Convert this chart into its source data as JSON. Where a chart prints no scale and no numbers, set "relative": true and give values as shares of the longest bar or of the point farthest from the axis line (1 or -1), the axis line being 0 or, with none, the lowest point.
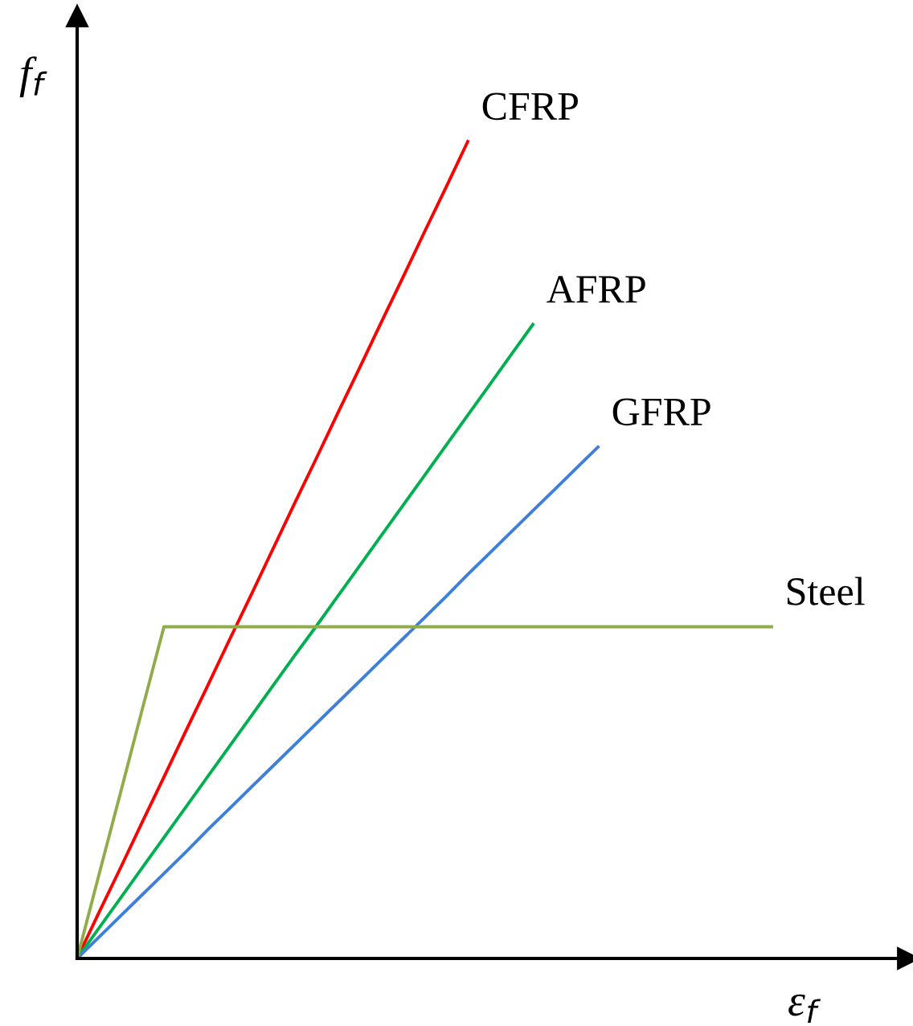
{
  "chart_data": {
    "type": "line",
    "relative": true,
    "xlabel": "ε$_{f}$",
    "ylabel": "f$_{f}$",
    "legend": false,
    "marker": "none",
    "line_style": "solid",
    "categories": [
      null,
      null,
      null,
      null,
      null,
      null,
      null,
      null,
      null,
      null,
      null,
      null,
      null,
      null,
      null,
      null,
      null,
      null,
      null,
      null,
      null,
      null,
      null,
      null,
      null,
      null,
      null,
      null,
      null,
      null,
      null,
      null,
      null
    ],
    "series": [
      {
        "name": "CFRP",
        "color": "#ff0000",
        "values": [
          0,
          0.056,
          0.111,
          0.167,
          0.222,
          0.278,
          0.333,
          0.389,
          0.444,
          0.5,
          0.556,
          0.611,
          0.667,
          0.722,
          0.778,
          0.833,
          0.889,
          0.944,
          1.0,
          null,
          null,
          null,
          null,
          null,
          null,
          null,
          null,
          null,
          null,
          null,
          null,
          null,
          null
        ]
      },
      {
        "name": "AFRP",
        "color": "#00b050",
        "values": [
          0,
          0.037,
          0.074,
          0.111,
          0.148,
          0.185,
          0.222,
          0.259,
          0.296,
          0.333,
          0.37,
          0.406,
          0.443,
          0.48,
          0.517,
          0.554,
          0.591,
          0.628,
          0.665,
          0.702,
          0.739,
          0.776,
          null,
          null,
          null,
          null,
          null,
          null,
          null,
          null,
          null,
          null,
          null
        ]
      },
      {
        "name": "GFRP",
        "color": "#3d7fd9",
        "values": [
          0,
          0.026,
          0.052,
          0.078,
          0.104,
          0.13,
          0.157,
          0.183,
          0.209,
          0.235,
          0.261,
          0.287,
          0.313,
          0.339,
          0.365,
          0.391,
          0.417,
          0.443,
          0.47,
          0.496,
          0.522,
          0.548,
          0.574,
          0.6,
          0.626,
          null,
          null,
          null,
          null,
          null,
          null,
          null,
          null
        ]
      },
      {
        "name": "Steel",
        "color": "#8fab4a",
        "values": [
          0,
          0.102,
          0.203,
          0.305,
          0.406,
          0.406,
          0.406,
          0.406,
          0.406,
          0.406,
          0.406,
          0.406,
          0.406,
          0.406,
          0.406,
          0.406,
          0.406,
          0.406,
          0.406,
          0.406,
          0.406,
          0.406,
          0.406,
          0.406,
          0.406,
          0.406,
          0.406,
          0.406,
          0.406,
          0.406,
          0.406,
          0.406,
          0.406
        ]
      }
    ]
  }
}
